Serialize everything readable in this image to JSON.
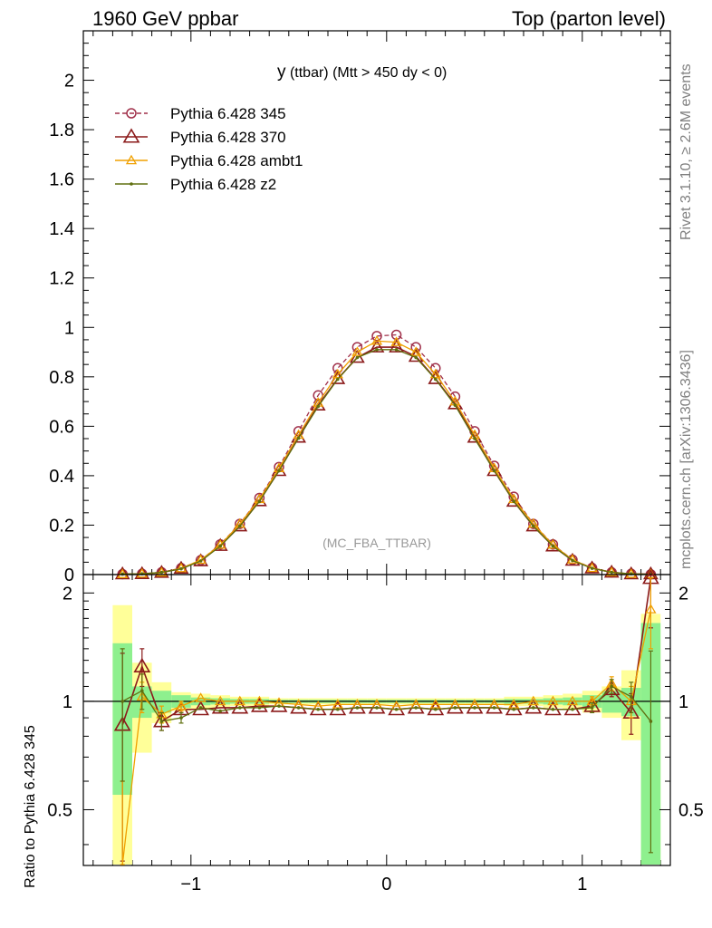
{
  "header": {
    "left": "1960 GeV ppbar",
    "right": "Top (parton level)"
  },
  "side_text": {
    "rivet": "Rivet 3.1.10, ≥ 2.6M events",
    "mcplots": "mcplots.cern.ch [arXiv:1306.3436]"
  },
  "colors": {
    "p345": "#a0304a",
    "p370": "#8b1a1a",
    "ambt1": "#f0a000",
    "z2": "#607010",
    "band_yellow": "#ffff99",
    "band_green": "#8ef08e"
  },
  "chart_data": [
    {
      "type": "line",
      "panel": "main",
      "title": "y (ttbar) (Mtt > 450 dy < 0)",
      "title_main": "y",
      "title_rest": " (ttbar) (Mtt > 450 dy < 0)",
      "watermark": "(MC_FBA_TTBAR)",
      "xlim": [
        -1.55,
        1.45
      ],
      "ylim": [
        0,
        2.2
      ],
      "yticks": [
        0,
        0.2,
        0.4,
        0.6,
        0.8,
        1,
        1.2,
        1.4,
        1.6,
        1.8,
        2
      ],
      "ytick_labels": [
        "0",
        "0.2",
        "0.4",
        "0.6",
        "0.8",
        "1",
        "1.2",
        "1.4",
        "1.6",
        "1.8",
        "2"
      ],
      "legend_position": "top-left",
      "x": [
        -1.35,
        -1.25,
        -1.15,
        -1.05,
        -0.95,
        -0.85,
        -0.75,
        -0.65,
        -0.55,
        -0.45,
        -0.35,
        -0.25,
        -0.15,
        -0.05,
        0.05,
        0.15,
        0.25,
        0.35,
        0.45,
        0.55,
        0.65,
        0.75,
        0.85,
        0.95,
        1.05,
        1.15,
        1.25,
        1.35
      ],
      "series": [
        {
          "name": "Pythia 6.428 345",
          "key": "p345",
          "marker": "circle",
          "dashed": true,
          "values": [
            0.002,
            0.003,
            0.009,
            0.026,
            0.058,
            0.122,
            0.205,
            0.31,
            0.435,
            0.58,
            0.725,
            0.835,
            0.92,
            0.965,
            0.97,
            0.92,
            0.835,
            0.72,
            0.58,
            0.44,
            0.315,
            0.205,
            0.122,
            0.06,
            0.027,
            0.009,
            0.003,
            0.001
          ]
        },
        {
          "name": "Pythia 6.428 370",
          "key": "p370",
          "marker": "triangle",
          "dashed": false,
          "values": [
            0.002,
            0.003,
            0.008,
            0.025,
            0.055,
            0.117,
            0.196,
            0.298,
            0.42,
            0.555,
            0.685,
            0.792,
            0.878,
            0.92,
            0.92,
            0.882,
            0.792,
            0.69,
            0.555,
            0.42,
            0.296,
            0.196,
            0.115,
            0.057,
            0.026,
            0.009,
            0.002,
            0.002
          ]
        },
        {
          "name": "Pythia 6.428 ambt1",
          "key": "ambt1",
          "marker": "triangle-small",
          "dashed": false,
          "values": [
            0.001,
            0.003,
            0.008,
            0.025,
            0.059,
            0.12,
            0.205,
            0.305,
            0.43,
            0.565,
            0.695,
            0.81,
            0.9,
            0.945,
            0.94,
            0.9,
            0.81,
            0.7,
            0.565,
            0.43,
            0.305,
            0.205,
            0.12,
            0.06,
            0.026,
            0.009,
            0.002,
            0.001
          ]
        },
        {
          "name": "Pythia 6.428 z2",
          "key": "z2",
          "marker": "dot",
          "dashed": false,
          "values": [
            0.002,
            0.003,
            0.009,
            0.023,
            0.055,
            0.115,
            0.196,
            0.296,
            0.42,
            0.552,
            0.68,
            0.79,
            0.878,
            0.91,
            0.91,
            0.878,
            0.79,
            0.685,
            0.55,
            0.42,
            0.296,
            0.196,
            0.115,
            0.057,
            0.025,
            0.009,
            0.003,
            0.001
          ]
        }
      ]
    },
    {
      "type": "line",
      "panel": "ratio",
      "ylabel": "Ratio to Pythia 6.428 345",
      "xlim": [
        -1.55,
        1.45
      ],
      "ylim": [
        0.35,
        2.25
      ],
      "xticks": [
        -1,
        0,
        1
      ],
      "xtick_labels": [
        "−1",
        "0",
        "1"
      ],
      "yticks": [
        0.5,
        1,
        2
      ],
      "ytick_labels": [
        "0.5",
        "1",
        "2"
      ],
      "x": [
        -1.35,
        -1.25,
        -1.15,
        -1.05,
        -0.95,
        -0.85,
        -0.75,
        -0.65,
        -0.55,
        -0.45,
        -0.35,
        -0.25,
        -0.15,
        -0.05,
        0.05,
        0.15,
        0.25,
        0.35,
        0.45,
        0.55,
        0.65,
        0.75,
        0.85,
        0.95,
        1.05,
        1.15,
        1.25,
        1.35
      ],
      "band_yellow_half": [
        0.85,
        0.28,
        0.13,
        0.06,
        0.05,
        0.04,
        0.03,
        0.03,
        0.02,
        0.02,
        0.02,
        0.02,
        0.02,
        0.02,
        0.02,
        0.02,
        0.02,
        0.02,
        0.02,
        0.02,
        0.03,
        0.03,
        0.04,
        0.05,
        0.07,
        0.1,
        0.22,
        0.75
      ],
      "band_green_half": [
        0.45,
        0.1,
        0.07,
        0.04,
        0.025,
        0.02,
        0.015,
        0.015,
        0.01,
        0.01,
        0.01,
        0.01,
        0.01,
        0.01,
        0.01,
        0.01,
        0.01,
        0.01,
        0.01,
        0.01,
        0.015,
        0.015,
        0.02,
        0.025,
        0.04,
        0.07,
        0.09,
        0.65
      ],
      "series": [
        {
          "name": "Pythia 6.428 370",
          "key": "p370",
          "marker": "triangle",
          "values": [
            0.86,
            1.25,
            0.88,
            0.95,
            0.95,
            0.96,
            0.96,
            0.97,
            0.97,
            0.96,
            0.95,
            0.95,
            0.96,
            0.96,
            0.95,
            0.96,
            0.95,
            0.96,
            0.96,
            0.96,
            0.95,
            0.96,
            0.95,
            0.95,
            0.97,
            1.08,
            0.93,
            2.2
          ],
          "errors": [
            0.5,
            0.15,
            0.05,
            0.03,
            0.02,
            0.015,
            0.01,
            0.01,
            0.01,
            0.01,
            0.01,
            0.01,
            0.01,
            0.01,
            0.01,
            0.01,
            0.01,
            0.01,
            0.01,
            0.01,
            0.01,
            0.01,
            0.015,
            0.02,
            0.03,
            0.05,
            0.12,
            0.6
          ]
        },
        {
          "name": "Pythia 6.428 ambt1",
          "key": "ambt1",
          "marker": "triangle-small",
          "values": [
            0.3,
            1.03,
            0.92,
            0.97,
            1.02,
            1.0,
            1.0,
            1.0,
            0.99,
            0.98,
            0.97,
            0.98,
            0.98,
            0.98,
            0.97,
            0.98,
            0.98,
            0.98,
            0.98,
            0.98,
            0.98,
            1.0,
            1.0,
            1.0,
            1.0,
            1.12,
            1.0,
            1.8
          ],
          "errors": [
            0.3,
            0.1,
            0.05,
            0.03,
            0.02,
            0.015,
            0.01,
            0.01,
            0.01,
            0.01,
            0.01,
            0.01,
            0.01,
            0.01,
            0.01,
            0.01,
            0.01,
            0.01,
            0.01,
            0.01,
            0.01,
            0.01,
            0.015,
            0.02,
            0.03,
            0.05,
            0.1,
            0.4
          ]
        },
        {
          "name": "Pythia 6.428 z2",
          "key": "z2",
          "marker": "dot",
          "values": [
            1.0,
            1.07,
            0.88,
            0.9,
            0.96,
            0.94,
            0.96,
            0.96,
            0.97,
            0.96,
            0.95,
            0.95,
            0.96,
            0.96,
            0.95,
            0.96,
            0.95,
            0.96,
            0.96,
            0.96,
            0.95,
            0.96,
            0.95,
            0.95,
            0.96,
            1.1,
            1.03,
            0.88
          ],
          "errors": [
            0.4,
            0.12,
            0.05,
            0.03,
            0.02,
            0.015,
            0.01,
            0.01,
            0.01,
            0.01,
            0.01,
            0.01,
            0.01,
            0.01,
            0.01,
            0.01,
            0.01,
            0.01,
            0.01,
            0.01,
            0.01,
            0.01,
            0.015,
            0.02,
            0.03,
            0.05,
            0.1,
            0.5
          ]
        }
      ]
    }
  ]
}
